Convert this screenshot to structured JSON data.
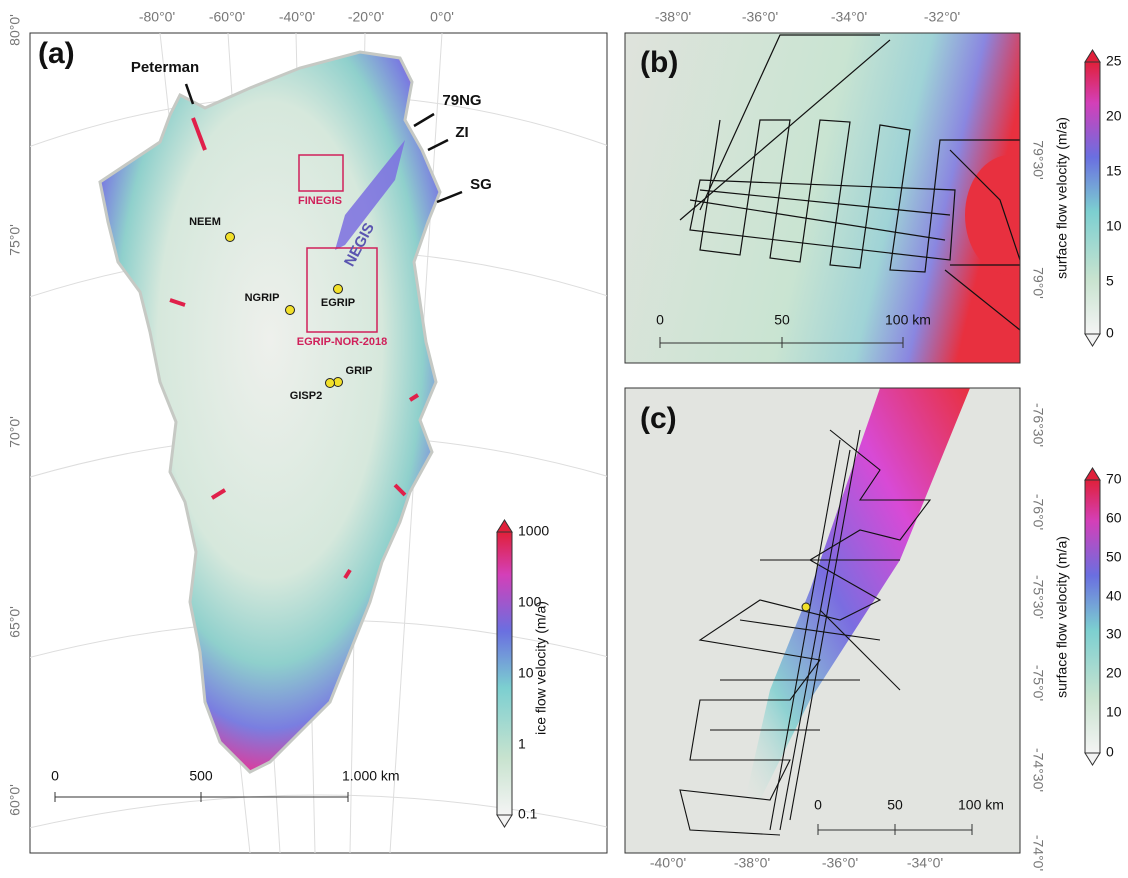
{
  "panels": [
    {
      "label": "(a)",
      "lon_labels": [
        "-80°0'",
        "-60°0'",
        "-40°0'",
        "-20°0'",
        "0°0'"
      ],
      "lat_labels": [
        "80°0'",
        "75°0'",
        "70°0'",
        "65°0'",
        "60°0'"
      ],
      "annotations": [
        "Peterman",
        "79NG",
        "ZI",
        "SG"
      ],
      "sites": [
        "NEEM",
        "NGRIP",
        "EGRIP",
        "GRIP",
        "GISP2"
      ],
      "regions": [
        "FINEGIS",
        "EGRIP-NOR-2018"
      ],
      "feature": "NEGIS",
      "scale_bar": [
        "0",
        "500",
        "1.000 km"
      ],
      "colorbar": {
        "label": "ice flow velocity (m/a)",
        "ticks": [
          "1000",
          "100",
          "10",
          "1",
          "0.1"
        ]
      }
    },
    {
      "label": "(b)",
      "lon_labels": [
        "-38°0'",
        "-36°0'",
        "-34°0'",
        "-32°0'"
      ],
      "lat_labels": [
        "79°30'",
        "79°0'"
      ],
      "scale_bar": [
        "0",
        "50",
        "100 km"
      ],
      "colorbar": {
        "label": "surface flow velocity (m/a)",
        "ticks": [
          "25",
          "20",
          "15",
          "10",
          "5",
          "0"
        ]
      }
    },
    {
      "label": "(c)",
      "lon_labels": [
        "-40°0'",
        "-38°0'",
        "-36°0'",
        "-34°0'"
      ],
      "lat_labels": [
        "-76°30'",
        "-76°0'",
        "-75°30'",
        "-75°0'",
        "-74°30'",
        "-74°0'"
      ],
      "scale_bar": [
        "0",
        "50",
        "100 km"
      ],
      "colorbar": {
        "label": "surface flow velocity (m/a)",
        "ticks": [
          "70",
          "60",
          "50",
          "40",
          "30",
          "20",
          "10",
          "0"
        ]
      }
    }
  ]
}
